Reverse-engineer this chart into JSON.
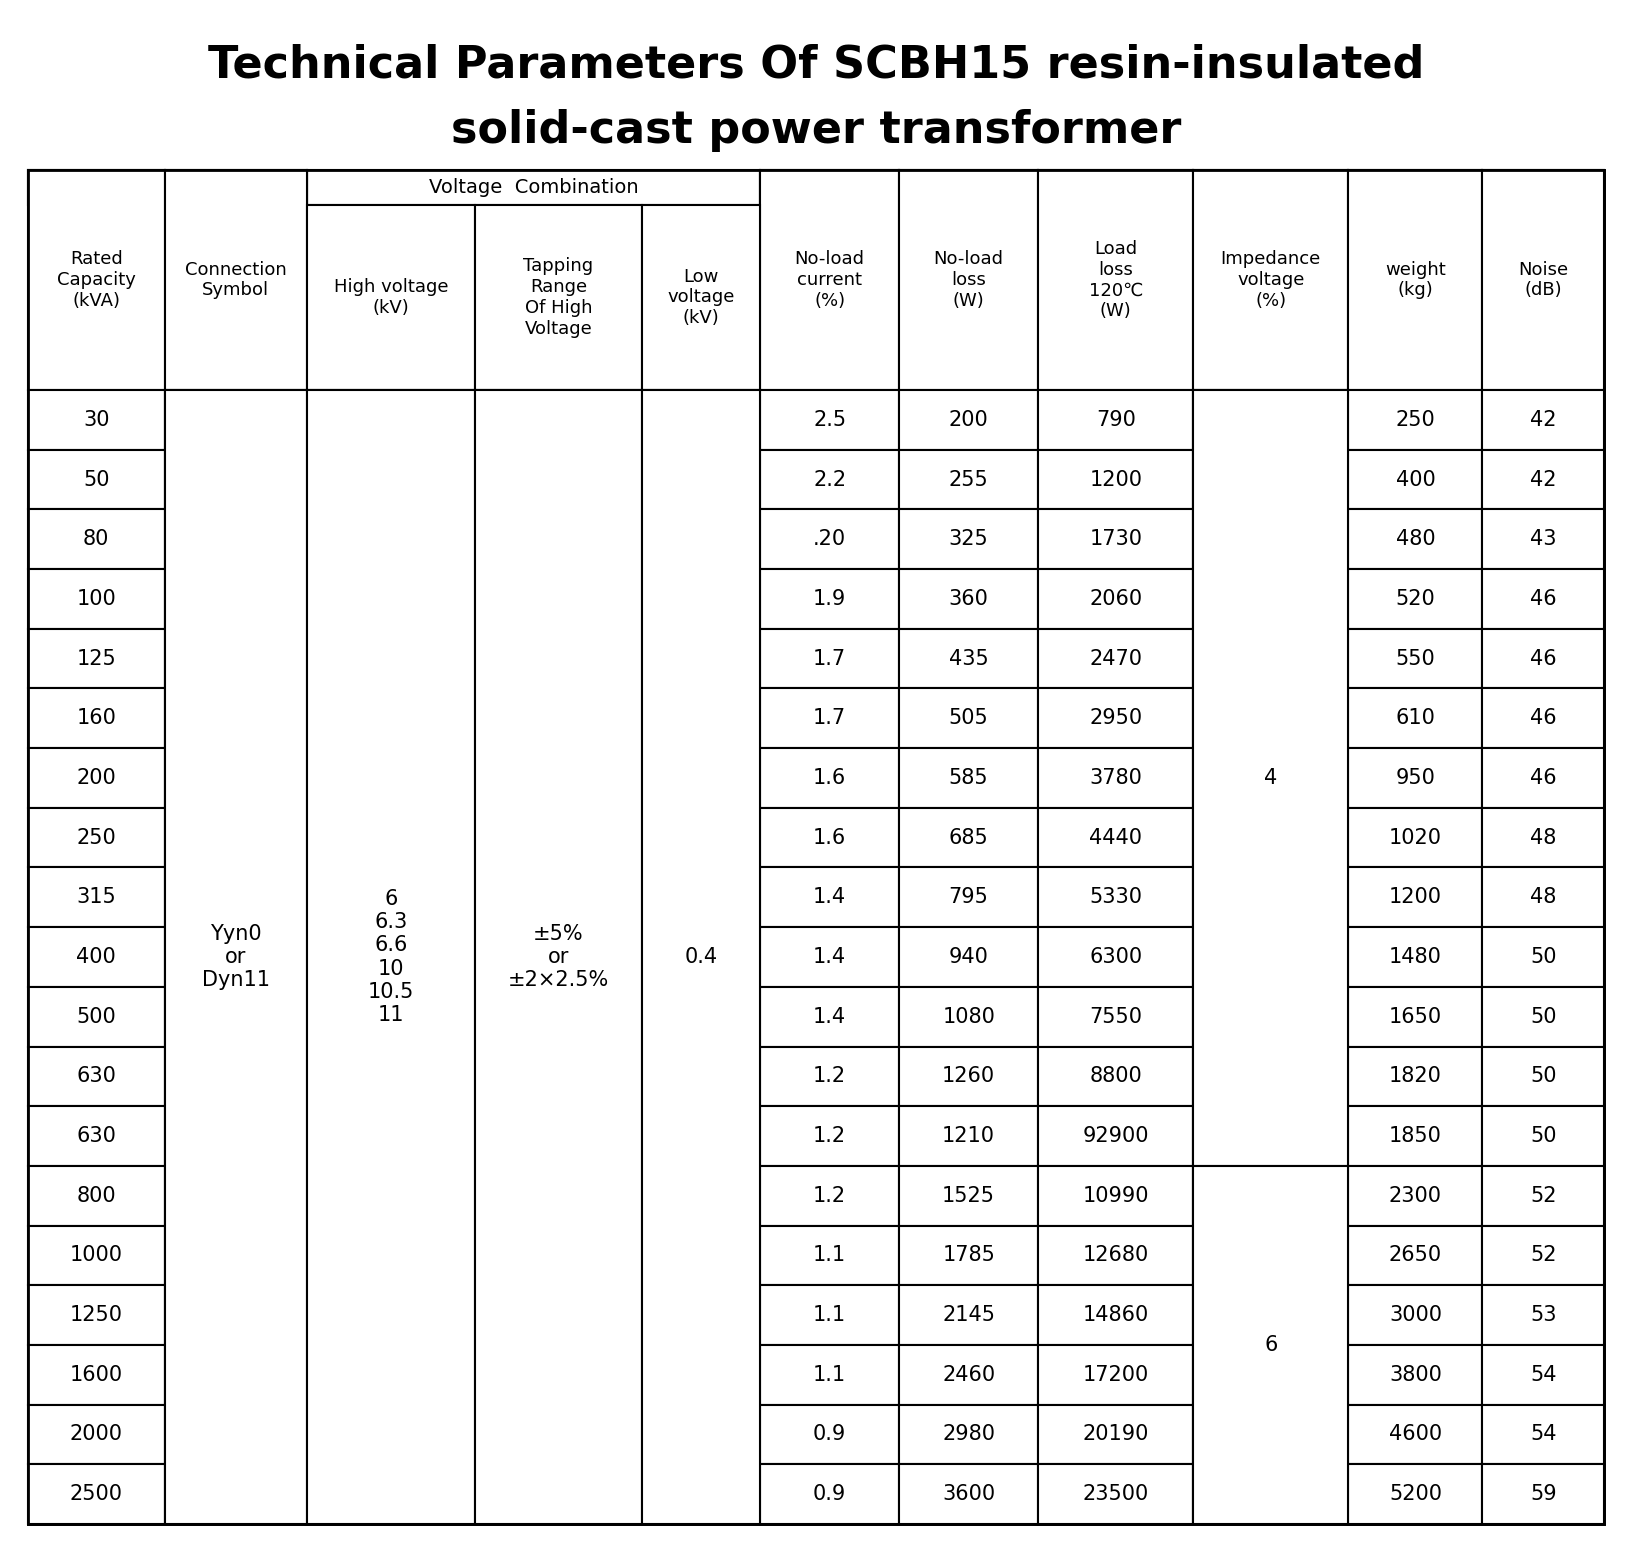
{
  "title_line1": "Technical Parameters Of SCBH15 resin-insulated",
  "title_line2": "solid-cast power transformer",
  "title_fontsize": 32,
  "title_fontweight": "bold",
  "background_color": "#ffffff",
  "voltage_combo_label": "Voltage  Combination",
  "col_headers": [
    "Rated\nCapacity\n(kVA)",
    "Connection\nSymbol",
    "High voltage\n(kV)",
    "Tapping\nRange\nOf High\nVoltage",
    "Low\nvoltage\n(kV)",
    "No-load\ncurrent\n(%)",
    "No-load\nloss\n(W)",
    "Load\nloss\n120℃\n(W)",
    "Impedance\nvoltage\n(%)",
    "weight\n(kg)",
    "Noise\n(dB)"
  ],
  "col_widths_rel": [
    110,
    115,
    135,
    135,
    95,
    112,
    112,
    125,
    125,
    108,
    98
  ],
  "row_data": [
    [
      "30",
      "2.5",
      "200",
      "790",
      "250",
      "42"
    ],
    [
      "50",
      "2.2",
      "255",
      "1200",
      "400",
      "42"
    ],
    [
      "80",
      ".20",
      "325",
      "1730",
      "480",
      "43"
    ],
    [
      "100",
      "1.9",
      "360",
      "2060",
      "520",
      "46"
    ],
    [
      "125",
      "1.7",
      "435",
      "2470",
      "550",
      "46"
    ],
    [
      "160",
      "1.7",
      "505",
      "2950",
      "610",
      "46"
    ],
    [
      "200",
      "1.6",
      "585",
      "3780",
      "950",
      "46"
    ],
    [
      "250",
      "1.6",
      "685",
      "4440",
      "1020",
      "48"
    ],
    [
      "315",
      "1.4",
      "795",
      "5330",
      "1200",
      "48"
    ],
    [
      "400",
      "1.4",
      "940",
      "6300",
      "1480",
      "50"
    ],
    [
      "500",
      "1.4",
      "1080",
      "7550",
      "1650",
      "50"
    ],
    [
      "630",
      "1.2",
      "1260",
      "8800",
      "1820",
      "50"
    ],
    [
      "630",
      "1.2",
      "1210",
      "92900",
      "1850",
      "50"
    ],
    [
      "800",
      "1.2",
      "1525",
      "10990",
      "2300",
      "52"
    ],
    [
      "1000",
      "1.1",
      "1785",
      "12680",
      "2650",
      "52"
    ],
    [
      "1250",
      "1.1",
      "2145",
      "14860",
      "3000",
      "53"
    ],
    [
      "1600",
      "1.1",
      "2460",
      "17200",
      "3800",
      "54"
    ],
    [
      "2000",
      "0.9",
      "2980",
      "20190",
      "4600",
      "54"
    ],
    [
      "2500",
      "0.9",
      "3600",
      "23500",
      "5200",
      "59"
    ]
  ],
  "merged_col1": "Yyn0\nor\nDyn11",
  "merged_col2": "6\n6.3\n6.6\n10\n10.5\n11",
  "merged_col3": "±5%\nor\n±2×2.5%",
  "merged_col4": "0.4",
  "impedance_4": "4",
  "impedance_6": "6",
  "imp_split_row": 13,
  "n_data_rows": 19
}
